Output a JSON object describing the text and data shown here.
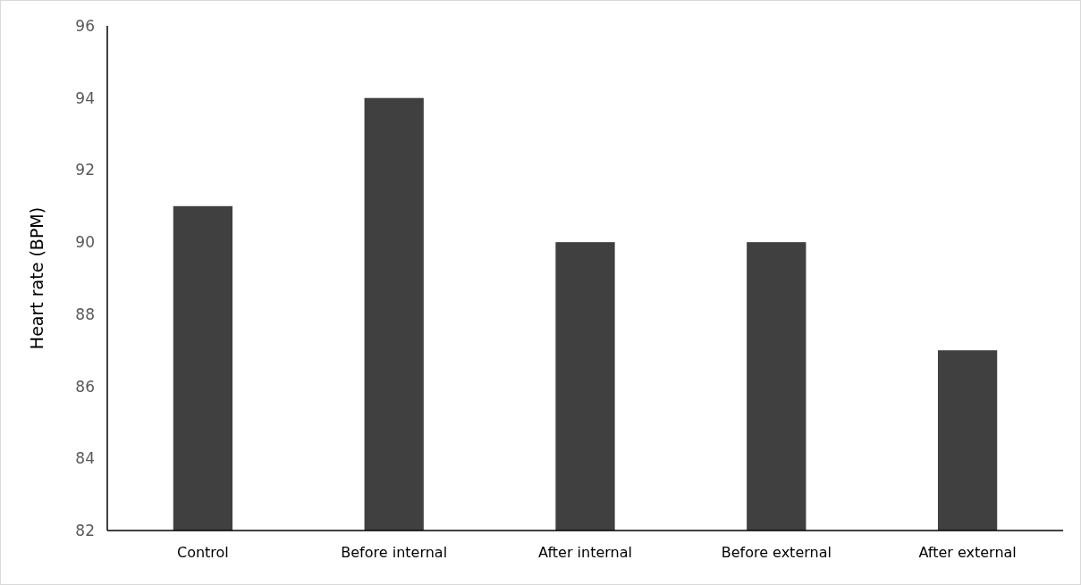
{
  "chart_data": {
    "type": "bar",
    "ylabel": "Heart rate (BPM)",
    "categories": [
      "Control",
      "Before internal",
      "After internal",
      "Before external",
      "After external"
    ],
    "values": [
      91,
      94,
      90,
      90,
      87
    ],
    "color": "#404040",
    "ylim": [
      82,
      96
    ],
    "yticks": [
      82,
      84,
      86,
      88,
      90,
      92,
      94,
      96
    ],
    "grid": false
  }
}
